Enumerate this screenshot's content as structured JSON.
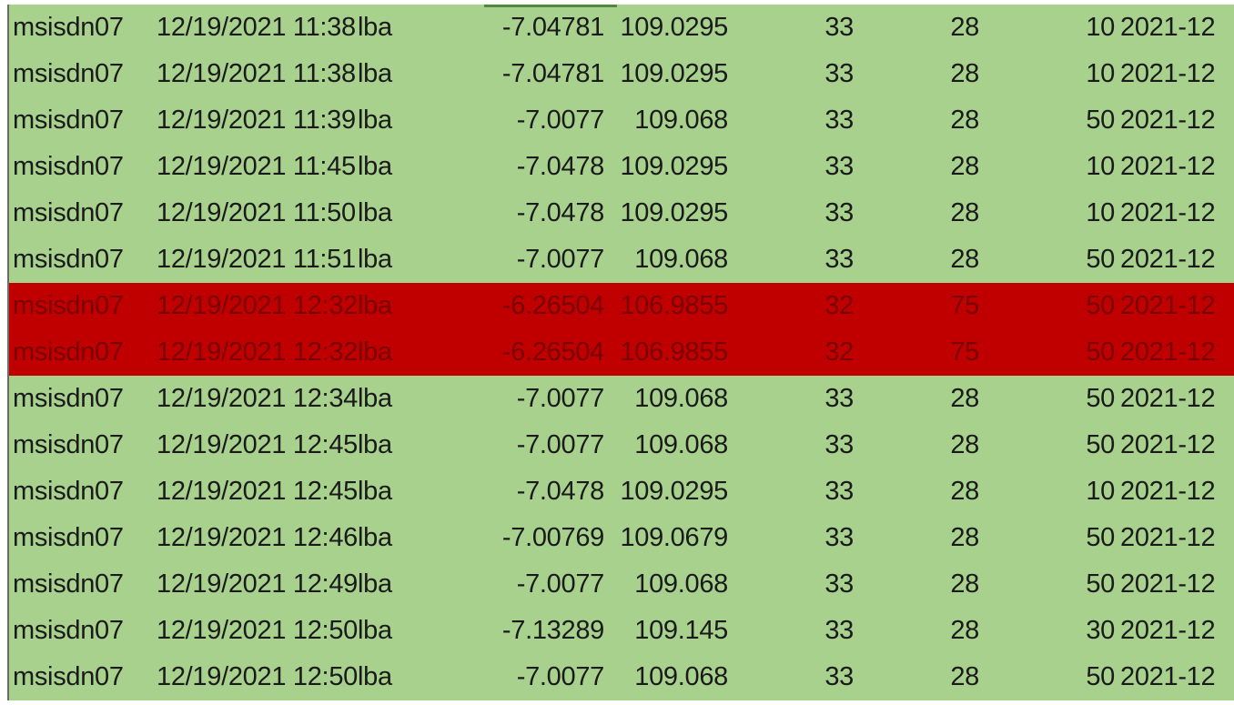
{
  "colors": {
    "row_background": "#a9d18e",
    "highlight_background": "#c00000",
    "highlight_text": "#7a0000"
  },
  "rows": [
    {
      "id": "msisdn07",
      "datetime": "12/19/2021 11:38",
      "source": "lba",
      "lat": "-7.04781",
      "lon": "109.0295",
      "a": "33",
      "b": "28",
      "c": "10",
      "period": "2021-12",
      "highlighted": false
    },
    {
      "id": "msisdn07",
      "datetime": "12/19/2021 11:38",
      "source": "lba",
      "lat": "-7.04781",
      "lon": "109.0295",
      "a": "33",
      "b": "28",
      "c": "10",
      "period": "2021-12",
      "highlighted": false
    },
    {
      "id": "msisdn07",
      "datetime": "12/19/2021 11:39",
      "source": "lba",
      "lat": "-7.0077",
      "lon": "109.068",
      "a": "33",
      "b": "28",
      "c": "50",
      "period": "2021-12",
      "highlighted": false
    },
    {
      "id": "msisdn07",
      "datetime": "12/19/2021 11:45",
      "source": "lba",
      "lat": "-7.0478",
      "lon": "109.0295",
      "a": "33",
      "b": "28",
      "c": "10",
      "period": "2021-12",
      "highlighted": false
    },
    {
      "id": "msisdn07",
      "datetime": "12/19/2021 11:50",
      "source": "lba",
      "lat": "-7.0478",
      "lon": "109.0295",
      "a": "33",
      "b": "28",
      "c": "10",
      "period": "2021-12",
      "highlighted": false
    },
    {
      "id": "msisdn07",
      "datetime": "12/19/2021 11:51",
      "source": "lba",
      "lat": "-7.0077",
      "lon": "109.068",
      "a": "33",
      "b": "28",
      "c": "50",
      "period": "2021-12",
      "highlighted": false
    },
    {
      "id": "msisdn07",
      "datetime": "12/19/2021 12:32",
      "source": "lba",
      "lat": "-6.26504",
      "lon": "106.9855",
      "a": "32",
      "b": "75",
      "c": "50",
      "period": "2021-12",
      "highlighted": true
    },
    {
      "id": "msisdn07",
      "datetime": "12/19/2021 12:32",
      "source": "lba",
      "lat": "-6.26504",
      "lon": "106.9855",
      "a": "32",
      "b": "75",
      "c": "50",
      "period": "2021-12",
      "highlighted": true
    },
    {
      "id": "msisdn07",
      "datetime": "12/19/2021 12:34",
      "source": "lba",
      "lat": "-7.0077",
      "lon": "109.068",
      "a": "33",
      "b": "28",
      "c": "50",
      "period": "2021-12",
      "highlighted": false
    },
    {
      "id": "msisdn07",
      "datetime": "12/19/2021 12:45",
      "source": "lba",
      "lat": "-7.0077",
      "lon": "109.068",
      "a": "33",
      "b": "28",
      "c": "50",
      "period": "2021-12",
      "highlighted": false
    },
    {
      "id": "msisdn07",
      "datetime": "12/19/2021 12:45",
      "source": "lba",
      "lat": "-7.0478",
      "lon": "109.0295",
      "a": "33",
      "b": "28",
      "c": "10",
      "period": "2021-12",
      "highlighted": false
    },
    {
      "id": "msisdn07",
      "datetime": "12/19/2021 12:46",
      "source": "lba",
      "lat": "-7.00769",
      "lon": "109.0679",
      "a": "33",
      "b": "28",
      "c": "50",
      "period": "2021-12",
      "highlighted": false
    },
    {
      "id": "msisdn07",
      "datetime": "12/19/2021 12:49",
      "source": "lba",
      "lat": "-7.0077",
      "lon": "109.068",
      "a": "33",
      "b": "28",
      "c": "50",
      "period": "2021-12",
      "highlighted": false
    },
    {
      "id": "msisdn07",
      "datetime": "12/19/2021 12:50",
      "source": "lba",
      "lat": "-7.13289",
      "lon": "109.145",
      "a": "33",
      "b": "28",
      "c": "30",
      "period": "2021-12",
      "highlighted": false
    },
    {
      "id": "msisdn07",
      "datetime": "12/19/2021 12:50",
      "source": "lba",
      "lat": "-7.0077",
      "lon": "109.068",
      "a": "33",
      "b": "28",
      "c": "50",
      "period": "2021-12",
      "highlighted": false
    }
  ]
}
